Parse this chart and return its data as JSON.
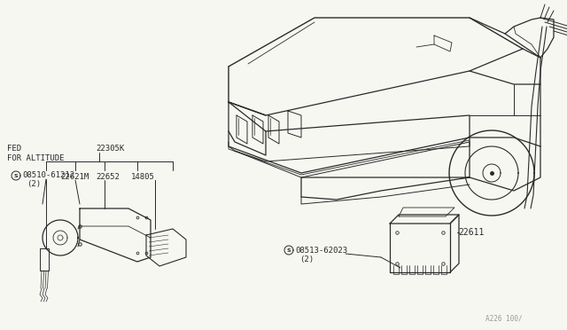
{
  "bg_color": "#f7f7f2",
  "line_color": "#2a2a2a",
  "labels": {
    "fed_altitude": "FED\nFOR ALTITUDE",
    "part_22305K": "22305K",
    "bolt_left": "08510-61212",
    "bolt_left_2": "(2)",
    "part_22621M": "22621M",
    "part_22652": "22652",
    "part_14805": "14805",
    "bolt_right": "08513-62023",
    "bolt_right_2": "(2)",
    "part_22611": "22611",
    "diagram_code": "A226 100/"
  },
  "font_size_label": 6.8,
  "font_size_part": 6.5
}
